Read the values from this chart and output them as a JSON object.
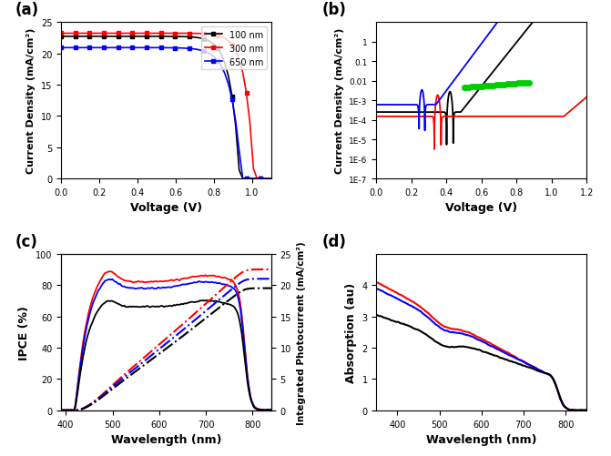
{
  "panel_labels": [
    "(a)",
    "(b)",
    "(c)",
    "(d)"
  ],
  "colors": {
    "black": "#000000",
    "red": "#ff0000",
    "blue": "#0000ff",
    "green": "#00cc00"
  },
  "panel_a": {
    "xlabel": "Voltage (V)",
    "ylabel": "Current Density (mA/cm²)",
    "xlim": [
      0,
      1.1
    ],
    "ylim": [
      0,
      25
    ],
    "legend": [
      "100 nm",
      "300 nm",
      "650 nm"
    ],
    "yticks": [
      0,
      5,
      10,
      15,
      20,
      25
    ],
    "xticks": [
      0.0,
      0.2,
      0.4,
      0.6,
      0.8,
      1.0
    ]
  },
  "panel_b": {
    "xlabel": "Voltage (V)",
    "ylabel": "Current Density (mA/cm²)",
    "xlim": [
      0,
      1.2
    ],
    "ylim_log": [
      1e-07,
      10
    ],
    "xticks": [
      0.0,
      0.2,
      0.4,
      0.6,
      0.8,
      1.0,
      1.2
    ],
    "yticks": [
      1e-07,
      1e-06,
      1e-05,
      0.0001,
      0.001,
      0.01,
      0.1,
      1
    ],
    "yticklabels": [
      "1E-7",
      "1E-6",
      "1E-5",
      "1E-4",
      "1E-3",
      "0.01",
      "0.1",
      "1"
    ]
  },
  "panel_c": {
    "xlabel": "Wavelength (nm)",
    "ylabel_left": "IPCE (%)",
    "ylabel_right": "Integrated Photocurrent (mA/cm²)",
    "xlim": [
      390,
      840
    ],
    "ylim_left": [
      0,
      100
    ],
    "ylim_right": [
      0,
      25
    ],
    "xticks": [
      400,
      500,
      600,
      700,
      800
    ],
    "yticks_left": [
      0,
      20,
      40,
      60,
      80,
      100
    ],
    "yticks_right": [
      0,
      5,
      10,
      15,
      20,
      25
    ]
  },
  "panel_d": {
    "xlabel": "Wavelength (nm)",
    "ylabel": "Absorption (au)",
    "xlim": [
      350,
      850
    ],
    "ylim": [
      0,
      5
    ],
    "xticks": [
      400,
      500,
      600,
      700,
      800
    ],
    "yticks": [
      0,
      1,
      2,
      3,
      4
    ]
  }
}
